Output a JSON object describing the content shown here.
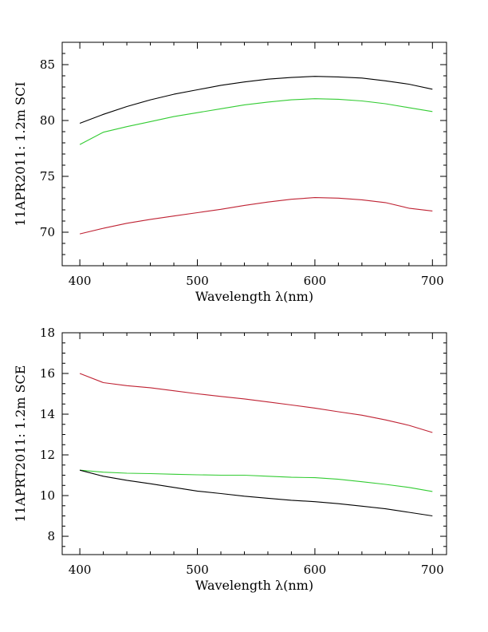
{
  "page": {
    "background": "#ffffff"
  },
  "chart_data": [
    {
      "type": "line",
      "title": "",
      "xlabel": "Wavelength λ(nm)",
      "ylabel": "11APR2011: 1.2m SCI",
      "xlim": [
        385,
        712
      ],
      "ylim": [
        67,
        87
      ],
      "xticks": [
        400,
        500,
        600,
        700
      ],
      "yticks": [
        70,
        75,
        80,
        85
      ],
      "x_minor_step": 20,
      "y_minor_step": 1,
      "grid": false,
      "legend": "none",
      "axis_color": "#000000",
      "series": [
        {
          "name": "black",
          "color": "#000000",
          "x": [
            400,
            420,
            440,
            460,
            480,
            500,
            520,
            540,
            560,
            580,
            600,
            620,
            640,
            660,
            680,
            700
          ],
          "y": [
            79.75,
            80.55,
            81.25,
            81.85,
            82.35,
            82.75,
            83.15,
            83.45,
            83.7,
            83.85,
            83.95,
            83.9,
            83.8,
            83.55,
            83.25,
            82.8
          ]
        },
        {
          "name": "green",
          "color": "#33cc33",
          "x": [
            400,
            420,
            440,
            460,
            480,
            500,
            520,
            540,
            560,
            580,
            600,
            620,
            640,
            660,
            680,
            700
          ],
          "y": [
            77.85,
            78.95,
            79.45,
            79.9,
            80.35,
            80.7,
            81.05,
            81.4,
            81.65,
            81.85,
            81.95,
            81.9,
            81.75,
            81.5,
            81.15,
            80.8
          ]
        },
        {
          "name": "red",
          "color": "#bf2233",
          "x": [
            400,
            420,
            440,
            460,
            480,
            500,
            520,
            540,
            560,
            580,
            600,
            620,
            640,
            660,
            680,
            700
          ],
          "y": [
            69.85,
            70.35,
            70.8,
            71.15,
            71.45,
            71.75,
            72.05,
            72.4,
            72.7,
            72.95,
            73.1,
            73.05,
            72.9,
            72.65,
            72.15,
            71.9
          ]
        }
      ]
    },
    {
      "type": "line",
      "title": "",
      "xlabel": "Wavelength λ(nm)",
      "ylabel": "11APRT2011: 1.2m SCE",
      "xlim": [
        385,
        712
      ],
      "ylim": [
        7.1,
        18
      ],
      "xticks": [
        400,
        500,
        600,
        700
      ],
      "yticks": [
        8,
        10,
        12,
        14,
        16,
        18
      ],
      "x_minor_step": 20,
      "y_minor_step": 0.5,
      "grid": false,
      "legend": "none",
      "axis_color": "#000000",
      "series": [
        {
          "name": "red",
          "color": "#bf2233",
          "x": [
            400,
            420,
            440,
            460,
            480,
            500,
            520,
            540,
            560,
            580,
            600,
            620,
            640,
            660,
            680,
            700
          ],
          "y": [
            16.0,
            15.55,
            15.4,
            15.3,
            15.15,
            15.0,
            14.87,
            14.75,
            14.6,
            14.45,
            14.3,
            14.12,
            13.95,
            13.72,
            13.45,
            13.1
          ]
        },
        {
          "name": "green",
          "color": "#33cc33",
          "x": [
            400,
            420,
            440,
            460,
            480,
            500,
            520,
            540,
            560,
            580,
            600,
            620,
            640,
            660,
            680,
            700
          ],
          "y": [
            11.25,
            11.15,
            11.1,
            11.08,
            11.05,
            11.02,
            11.0,
            11.0,
            10.95,
            10.9,
            10.88,
            10.8,
            10.68,
            10.55,
            10.4,
            10.2
          ]
        },
        {
          "name": "black",
          "color": "#000000",
          "x": [
            400,
            420,
            440,
            460,
            480,
            500,
            520,
            540,
            560,
            580,
            600,
            620,
            640,
            660,
            680,
            700
          ],
          "y": [
            11.25,
            10.95,
            10.75,
            10.58,
            10.4,
            10.22,
            10.1,
            9.97,
            9.87,
            9.77,
            9.7,
            9.6,
            9.48,
            9.35,
            9.18,
            9.0
          ]
        }
      ]
    }
  ]
}
